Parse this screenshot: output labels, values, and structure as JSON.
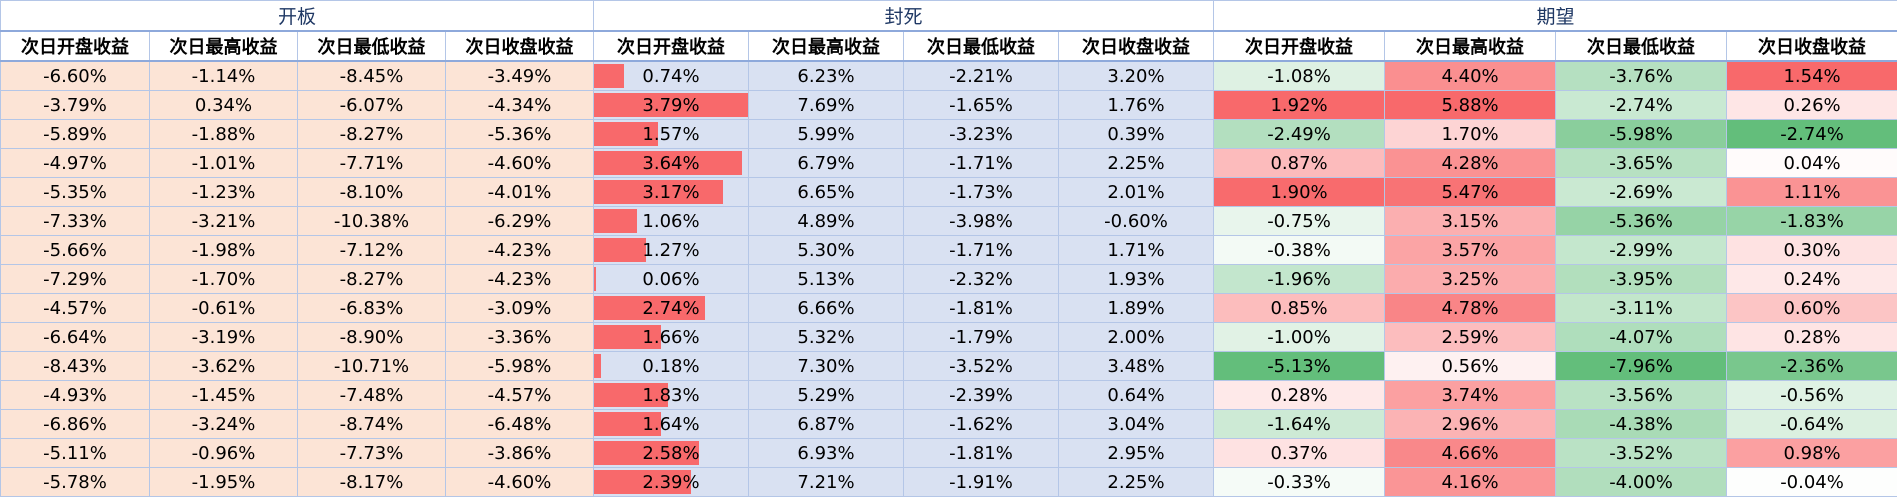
{
  "groups": [
    "开板",
    "封死",
    "期望"
  ],
  "headers": [
    "次日开盘收益",
    "次日最高收益",
    "次日最低收益",
    "次日收盘收益",
    "次日开盘收益",
    "次日最高收益",
    "次日最低收益",
    "次日收盘收益",
    "次日开盘收益",
    "次日最高收益",
    "次日最低收益",
    "次日收盘收益"
  ],
  "colors": {
    "kaiban_bg": "#fce4d6",
    "fengsi_bg": "#d9e1f2",
    "databar": "#f8696b",
    "neg_max": "#63be7b",
    "pos_max": "#f8696b",
    "mid": "#ffffff"
  },
  "rows": [
    [
      "-6.60%",
      "-1.14%",
      "-8.45%",
      "-3.49%",
      "0.74%",
      "6.23%",
      "-2.21%",
      "3.20%",
      "-1.08%",
      "4.40%",
      "-3.76%",
      "1.54%"
    ],
    [
      "-3.79%",
      "0.34%",
      "-6.07%",
      "-4.34%",
      "3.79%",
      "7.69%",
      "-1.65%",
      "1.76%",
      "1.92%",
      "5.88%",
      "-2.74%",
      "0.26%"
    ],
    [
      "-5.89%",
      "-1.88%",
      "-8.27%",
      "-5.36%",
      "1.57%",
      "5.99%",
      "-3.23%",
      "0.39%",
      "-2.49%",
      "1.70%",
      "-5.98%",
      "-2.74%"
    ],
    [
      "-4.97%",
      "-1.01%",
      "-7.71%",
      "-4.60%",
      "3.64%",
      "6.79%",
      "-1.71%",
      "2.25%",
      "0.87%",
      "4.28%",
      "-3.65%",
      "0.04%"
    ],
    [
      "-5.35%",
      "-1.23%",
      "-8.10%",
      "-4.01%",
      "3.17%",
      "6.65%",
      "-1.73%",
      "2.01%",
      "1.90%",
      "5.47%",
      "-2.69%",
      "1.11%"
    ],
    [
      "-7.33%",
      "-3.21%",
      "-10.38%",
      "-6.29%",
      "1.06%",
      "4.89%",
      "-3.98%",
      "-0.60%",
      "-0.75%",
      "3.15%",
      "-5.36%",
      "-1.83%"
    ],
    [
      "-5.66%",
      "-1.98%",
      "-7.12%",
      "-4.23%",
      "1.27%",
      "5.30%",
      "-1.71%",
      "1.71%",
      "-0.38%",
      "3.57%",
      "-2.99%",
      "0.30%"
    ],
    [
      "-7.29%",
      "-1.70%",
      "-8.27%",
      "-4.23%",
      "0.06%",
      "5.13%",
      "-2.32%",
      "1.93%",
      "-1.96%",
      "3.25%",
      "-3.95%",
      "0.24%"
    ],
    [
      "-4.57%",
      "-0.61%",
      "-6.83%",
      "-3.09%",
      "2.74%",
      "6.66%",
      "-1.81%",
      "1.89%",
      "0.85%",
      "4.78%",
      "-3.11%",
      "0.60%"
    ],
    [
      "-6.64%",
      "-3.19%",
      "-8.90%",
      "-3.36%",
      "1.66%",
      "5.32%",
      "-1.79%",
      "2.00%",
      "-1.00%",
      "2.59%",
      "-4.07%",
      "0.28%"
    ],
    [
      "-8.43%",
      "-3.62%",
      "-10.71%",
      "-5.98%",
      "0.18%",
      "7.30%",
      "-3.52%",
      "3.48%",
      "-5.13%",
      "0.56%",
      "-7.96%",
      "-2.36%"
    ],
    [
      "-4.93%",
      "-1.45%",
      "-7.48%",
      "-4.57%",
      "1.83%",
      "5.29%",
      "-2.39%",
      "0.64%",
      "0.28%",
      "3.74%",
      "-3.56%",
      "-0.56%"
    ],
    [
      "-6.86%",
      "-3.24%",
      "-8.74%",
      "-6.48%",
      "1.64%",
      "6.87%",
      "-1.62%",
      "3.04%",
      "-1.64%",
      "2.96%",
      "-4.38%",
      "-0.64%"
    ],
    [
      "-5.11%",
      "-0.96%",
      "-7.73%",
      "-3.86%",
      "2.58%",
      "6.93%",
      "-1.81%",
      "2.95%",
      "0.37%",
      "4.66%",
      "-3.52%",
      "0.98%"
    ],
    [
      "-5.78%",
      "-1.95%",
      "-8.17%",
      "-4.60%",
      "2.39%",
      "7.21%",
      "-1.91%",
      "2.25%",
      "-0.33%",
      "4.16%",
      "-4.00%",
      "-0.04%"
    ]
  ]
}
